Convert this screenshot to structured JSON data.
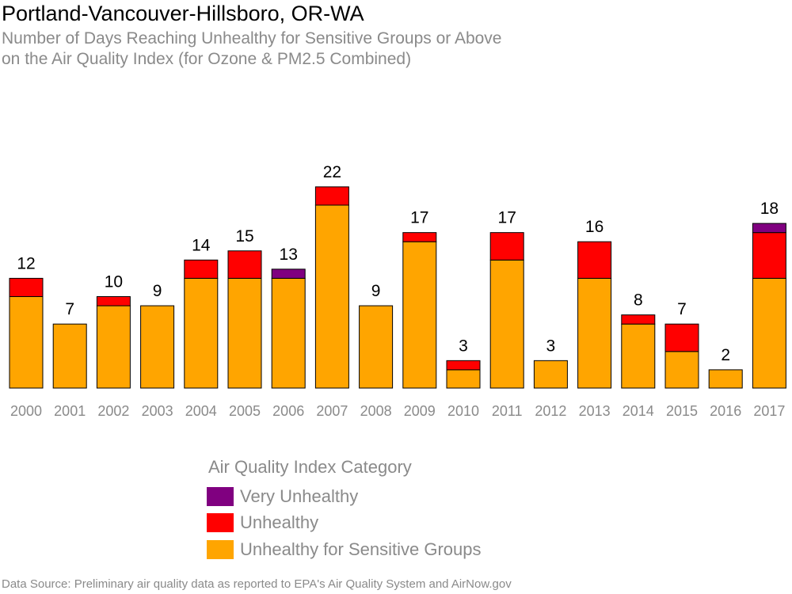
{
  "header": {
    "title": "Portland-Vancouver-Hillsboro, OR-WA",
    "subtitle_line1": "Number of Days Reaching Unhealthy for Sensitive Groups or Above",
    "subtitle_line2": "on the Air Quality Index (for Ozone & PM2.5 Combined)"
  },
  "legend": {
    "title": "Air Quality Index Category",
    "items": [
      {
        "label": "Very Unhealthy",
        "color": "#800080"
      },
      {
        "label": "Unhealthy",
        "color": "#ff0000"
      },
      {
        "label": "Unhealthy for Sensitive Groups",
        "color": "#ffa500"
      }
    ]
  },
  "footer": {
    "source": "Data Source: Preliminary air quality data as reported to EPA's Air Quality System and AirNow.gov"
  },
  "chart_data": {
    "type": "bar",
    "stacked": true,
    "categories": [
      "2000",
      "2001",
      "2002",
      "2003",
      "2004",
      "2005",
      "2006",
      "2007",
      "2008",
      "2009",
      "2010",
      "2011",
      "2012",
      "2013",
      "2014",
      "2015",
      "2016",
      "2017"
    ],
    "series": [
      {
        "name": "Unhealthy for Sensitive Groups",
        "color": "#ffa500",
        "values": [
          10,
          7,
          9,
          9,
          12,
          12,
          12,
          20,
          9,
          16,
          2,
          14,
          3,
          12,
          7,
          4,
          2,
          12
        ]
      },
      {
        "name": "Unhealthy",
        "color": "#ff0000",
        "values": [
          2,
          0,
          1,
          0,
          2,
          3,
          0,
          2,
          0,
          1,
          1,
          3,
          0,
          4,
          1,
          3,
          0,
          5
        ]
      },
      {
        "name": "Very Unhealthy",
        "color": "#800080",
        "values": [
          0,
          0,
          0,
          0,
          0,
          0,
          1,
          0,
          0,
          0,
          0,
          0,
          0,
          0,
          0,
          0,
          0,
          1
        ]
      }
    ],
    "totals": [
      12,
      7,
      10,
      9,
      14,
      15,
      13,
      22,
      9,
      17,
      3,
      17,
      3,
      16,
      8,
      7,
      2,
      18
    ],
    "ylim": [
      0,
      22
    ],
    "grid": false,
    "legend_position": "bottom"
  }
}
